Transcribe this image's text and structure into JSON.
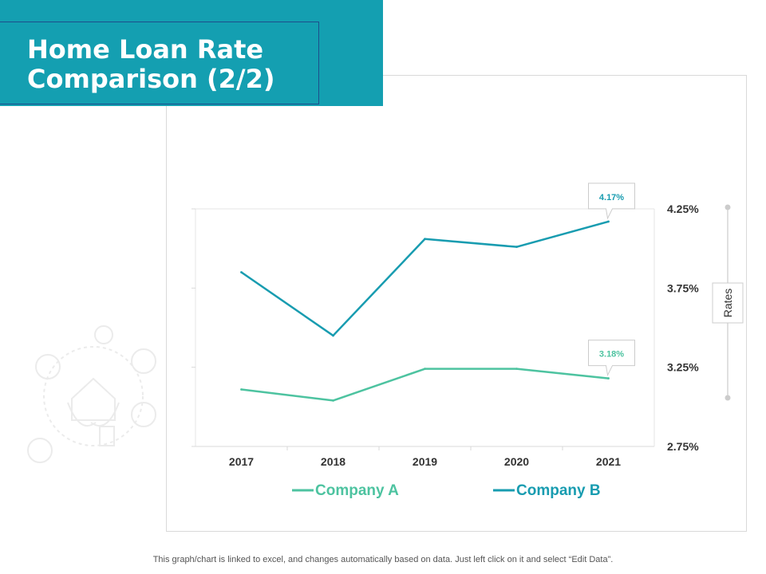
{
  "slide": {
    "title": "Home Loan Rate Comparison (2/2)",
    "footer": "This graph/chart is linked to excel,  and changes automatically based on data. Just left click on it and select “Edit Data”."
  },
  "colors": {
    "banner": "#149fb1",
    "company_a": "#4dc3a0",
    "company_b": "#189cb0"
  },
  "chart_data": {
    "type": "line",
    "categories": [
      "2017",
      "2018",
      "2019",
      "2020",
      "2021"
    ],
    "series": [
      {
        "name": "Company A",
        "values": [
          3.11,
          3.04,
          3.24,
          3.24,
          3.18
        ],
        "color": "#4dc3a0",
        "callout": "3.18%"
      },
      {
        "name": "Company B",
        "values": [
          3.85,
          3.45,
          4.06,
          4.01,
          4.17
        ],
        "color": "#189cb0",
        "callout": "4.17%"
      }
    ],
    "y_axis": {
      "side": "right",
      "label": "Rates",
      "ticks": [
        "4.25%",
        "3.75%",
        "3.25%",
        "2.75%"
      ],
      "tick_values": [
        4.25,
        3.75,
        3.25,
        2.75
      ],
      "ylim": [
        2.75,
        4.25
      ]
    },
    "legend": "bottom",
    "grid": false
  }
}
